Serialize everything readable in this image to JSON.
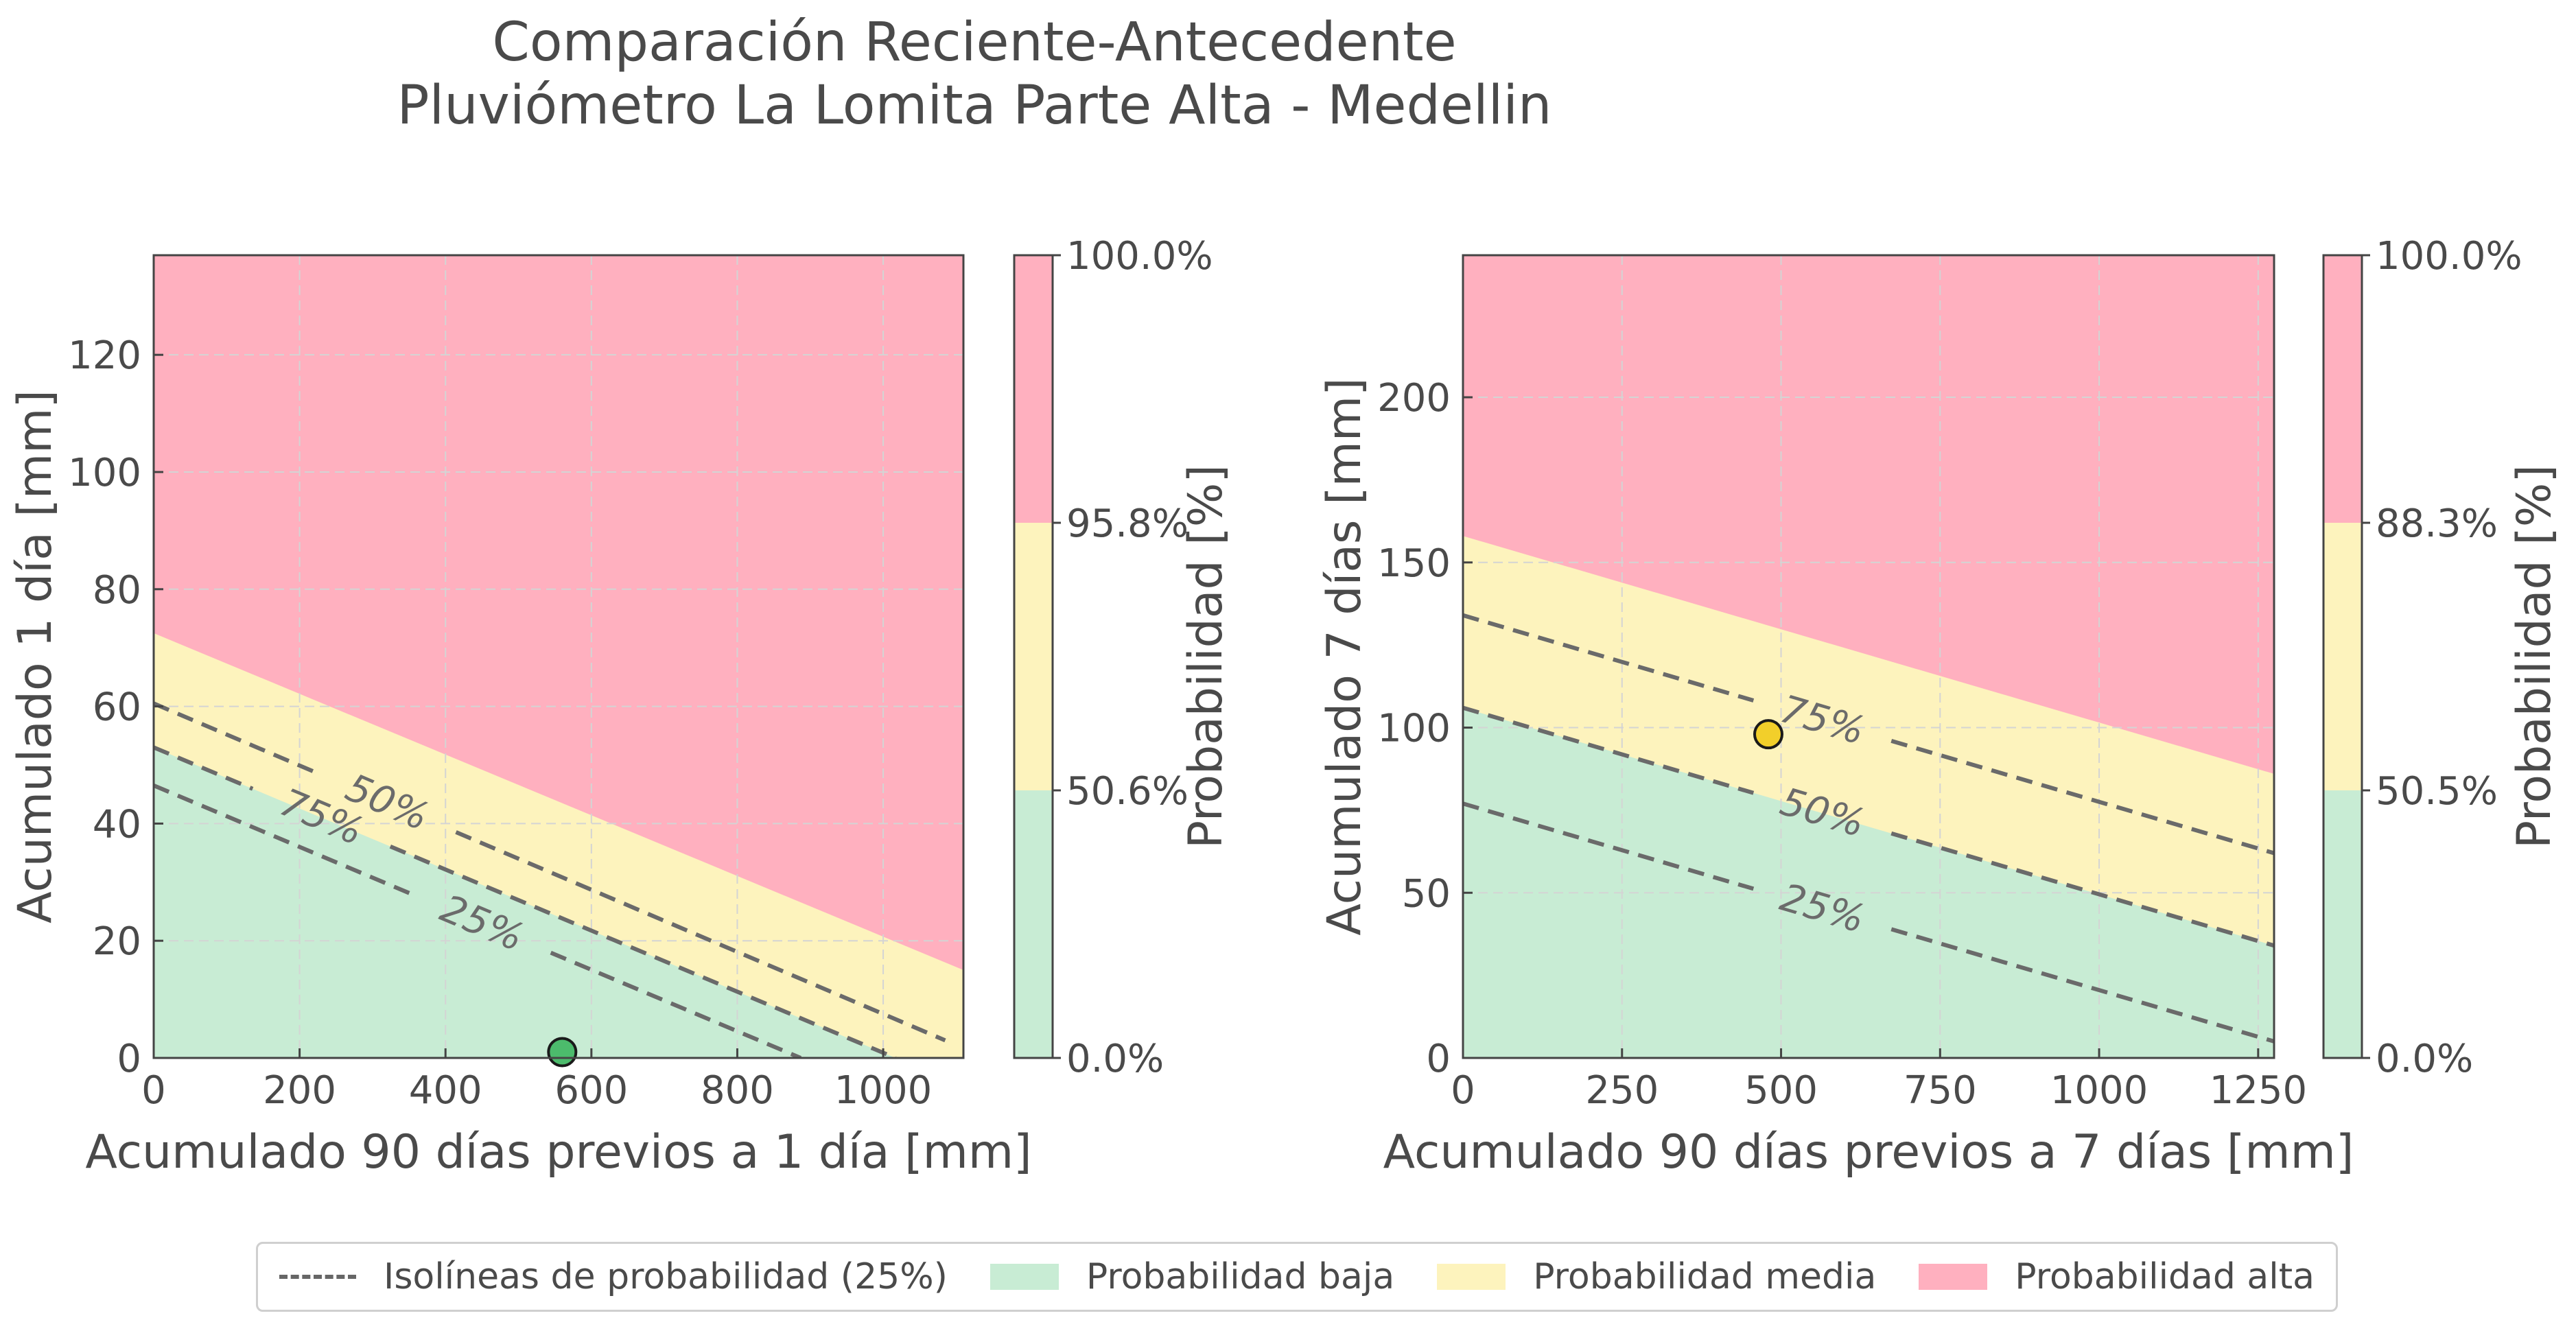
{
  "title": "Comparación Reciente-Antecedente",
  "subtitle": "Pluviómetro La Lomita Parte Alta - Medellin",
  "colors": {
    "low": "#c8ecd4",
    "medium": "#fdf3bd",
    "high": "#ffb0bf",
    "isoline": "#6a6a6a",
    "grid": "#d4d4d4"
  },
  "legend": [
    {
      "label": "Isolíneas de probabilidad (25%)",
      "kind": "line"
    },
    {
      "label": "Probabilidad baja",
      "kind": "patch",
      "color": "#c8ecd4"
    },
    {
      "label": "Probabilidad media",
      "kind": "patch",
      "color": "#fdf3bd"
    },
    {
      "label": "Probabilidad alta",
      "kind": "patch",
      "color": "#ffb0bf"
    }
  ],
  "chart_data": [
    {
      "type": "area",
      "xlabel": "Acumulado 90 días previos a 1 día [mm]",
      "ylabel": "Acumulado 1 día [mm]",
      "xlim": [
        0,
        1110
      ],
      "ylim": [
        0,
        137
      ],
      "xticks": [
        0,
        200,
        400,
        600,
        800,
        1000
      ],
      "yticks": [
        0,
        20,
        40,
        60,
        80,
        100,
        120
      ],
      "grid": true,
      "regions": {
        "medium_lower": [
          [
            0,
            53
          ],
          [
            1017,
            0
          ]
        ],
        "high_lower": [
          [
            0,
            72.5
          ],
          [
            1110,
            15
          ]
        ]
      },
      "isolines": [
        {
          "label": "25%",
          "points": [
            [
              0,
              46.5
            ],
            [
              887,
              0
            ]
          ],
          "label_at": [
            450,
            22
          ]
        },
        {
          "label": "50%",
          "points": [
            [
              0,
              60.5
            ],
            [
              1085,
              3
            ]
          ],
          "label_at": [
            320,
            36
          ]
        },
        {
          "label": "75%",
          "points": [
            [
              0,
              53
            ],
            [
              1017,
              0
            ]
          ],
          "label_at": [
            230,
            47
          ]
        }
      ],
      "point": {
        "x": 560,
        "y": 1,
        "color": "#4cbb6c"
      },
      "colorbar": {
        "label": "Probabilidad [%]",
        "ticks": [
          "0.0%",
          "50.6%",
          "95.8%",
          "100.0%"
        ]
      }
    },
    {
      "type": "area",
      "xlabel": "Acumulado 90 días previos a 7 días [mm]",
      "ylabel": "Acumulado 7 días [mm]",
      "xlim": [
        0,
        1275
      ],
      "ylim": [
        0,
        243
      ],
      "xticks": [
        0,
        250,
        500,
        750,
        1000,
        1250
      ],
      "yticks": [
        0,
        50,
        100,
        150,
        200
      ],
      "grid": true,
      "regions": {
        "medium_lower": [
          [
            0,
            106
          ],
          [
            1275,
            34
          ]
        ],
        "high_lower": [
          [
            0,
            158
          ],
          [
            1275,
            86
          ]
        ]
      },
      "isolines": [
        {
          "label": "25%",
          "points": [
            [
              0,
              77
            ],
            [
              1275,
              5
            ]
          ],
          "label_at": [
            565,
            46
          ]
        },
        {
          "label": "50%",
          "points": [
            [
              0,
              106
            ],
            [
              1275,
              34
            ]
          ],
          "label_at": [
            565,
            74
          ]
        },
        {
          "label": "75%",
          "points": [
            [
              0,
              134
            ],
            [
              1275,
              62
            ]
          ],
          "label_at": [
            565,
            103
          ]
        }
      ],
      "point": {
        "x": 480,
        "y": 98,
        "color": "#f2cf2a"
      },
      "colorbar": {
        "label": "Probabilidad [%]",
        "ticks": [
          "0.0%",
          "50.5%",
          "88.3%",
          "100.0%"
        ]
      }
    }
  ]
}
